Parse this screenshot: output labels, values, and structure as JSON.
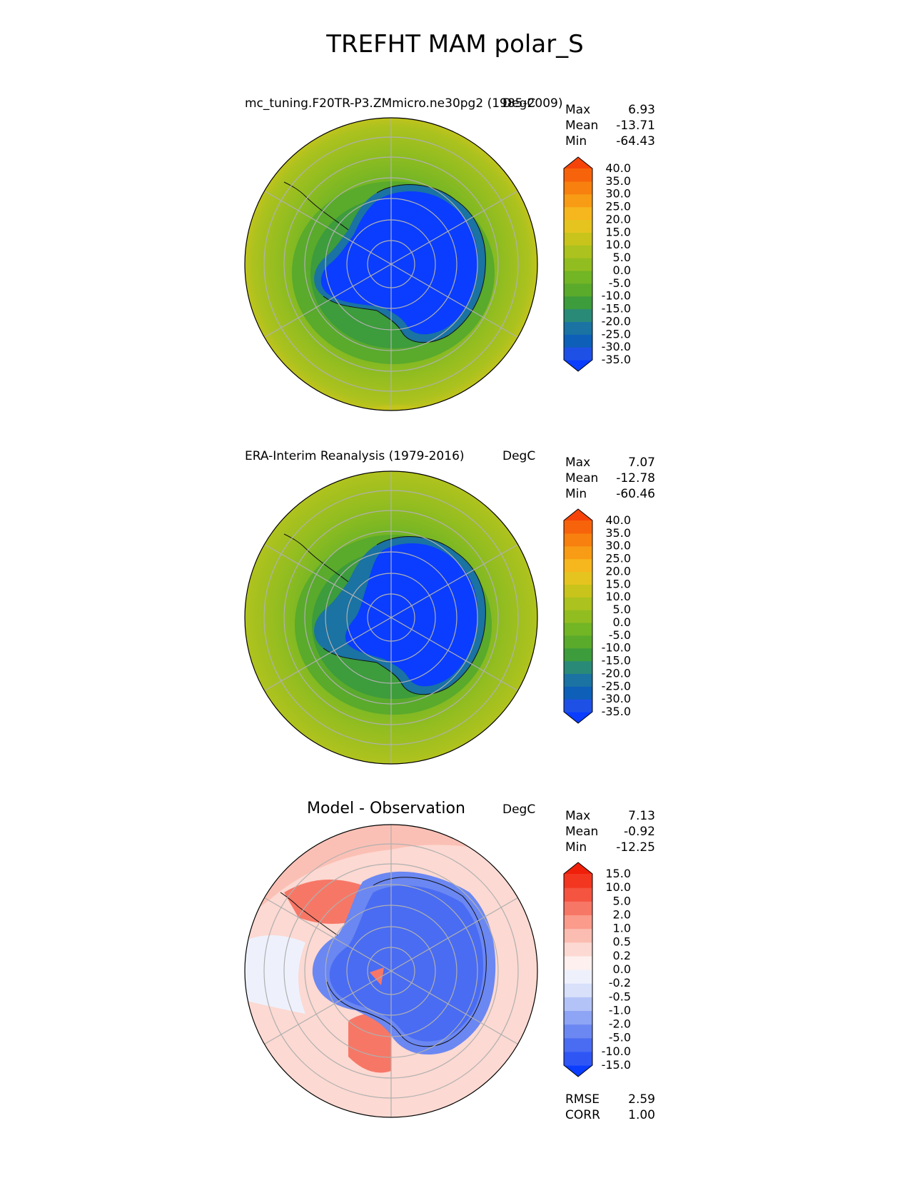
{
  "figure_title": "TREFHT MAM polar_S",
  "panels": [
    {
      "title_left": "mc_tuning.F20TR-P3.ZMmicro.ne30pg2 (1985-2009)",
      "units": "DegC",
      "stats": {
        "max_label": "Max",
        "max": "6.93",
        "mean_label": "Mean",
        "mean": "-13.71",
        "min_label": "Min",
        "min": "-64.43"
      }
    },
    {
      "title_left": "ERA-Interim Reanalysis (1979-2016)",
      "units": "DegC",
      "stats": {
        "max_label": "Max",
        "max": "7.07",
        "mean_label": "Mean",
        "mean": "-12.78",
        "min_label": "Min",
        "min": "-60.46"
      }
    },
    {
      "title_center": "Model - Observation",
      "units": "DegC",
      "stats": {
        "max_label": "Max",
        "max": "7.13",
        "mean_label": "Mean",
        "mean": "-0.92",
        "min_label": "Min",
        "min": "-12.25"
      },
      "metrics": {
        "rmse_label": "RMSE",
        "rmse": "2.59",
        "corr_label": "CORR",
        "corr": "1.00"
      }
    }
  ],
  "chart_data": [
    {
      "type": "heatmap",
      "projection": "south-polar-stereographic",
      "title": "mc_tuning.F20TR-P3.ZMmicro.ne30pg2 (1985-2009)",
      "units": "DegC",
      "colorbar": {
        "levels": [
          "-35.0",
          "-30.0",
          "-25.0",
          "-20.0",
          "-15.0",
          "-10.0",
          "-5.0",
          "0.0",
          "5.0",
          "10.0",
          "15.0",
          "20.0",
          "25.0",
          "30.0",
          "35.0",
          "40.0"
        ],
        "colors": [
          "#0a3dff",
          "#1f50e6",
          "#0e5fb8",
          "#1a73a2",
          "#2a8a78",
          "#3d9c3c",
          "#5aaa2c",
          "#72b525",
          "#92bd20",
          "#acc21e",
          "#c8c41c",
          "#e6c41f",
          "#f6b61d",
          "#f89b15",
          "#f7800f",
          "#f7630b",
          "#f5430a"
        ]
      },
      "field_levels": {
        "ocean_far": "5.0",
        "ocean_mid": "0.0",
        "ocean_near": "-5.0",
        "sea_ice": "-10.0",
        "coast": "-20.0",
        "interior": "-35.0"
      }
    },
    {
      "type": "heatmap",
      "projection": "south-polar-stereographic",
      "title": "ERA-Interim Reanalysis (1979-2016)",
      "units": "DegC",
      "colorbar": {
        "levels": [
          "-35.0",
          "-30.0",
          "-25.0",
          "-20.0",
          "-15.0",
          "-10.0",
          "-5.0",
          "0.0",
          "5.0",
          "10.0",
          "15.0",
          "20.0",
          "25.0",
          "30.0",
          "35.0",
          "40.0"
        ],
        "colors": [
          "#0a3dff",
          "#1f50e6",
          "#0e5fb8",
          "#1a73a2",
          "#2a8a78",
          "#3d9c3c",
          "#5aaa2c",
          "#72b525",
          "#92bd20",
          "#acc21e",
          "#c8c41c",
          "#e6c41f",
          "#f6b61d",
          "#f89b15",
          "#f7800f",
          "#f7630b",
          "#f5430a"
        ]
      },
      "field_levels": {
        "ocean_far": "5.0",
        "ocean_mid": "0.0",
        "ocean_near": "-5.0",
        "sea_ice": "-10.0",
        "coast": "-20.0",
        "interior": "-35.0"
      }
    },
    {
      "type": "heatmap",
      "projection": "south-polar-stereographic",
      "title": "Model - Observation",
      "units": "DegC",
      "colorbar": {
        "levels": [
          "-15.0",
          "-10.0",
          "-5.0",
          "-2.0",
          "-1.0",
          "-0.5",
          "-0.2",
          "0.0",
          "0.2",
          "0.5",
          "1.0",
          "2.0",
          "5.0",
          "10.0",
          "15.0"
        ],
        "colors": [
          "#0a3dff",
          "#2f55f5",
          "#4a6cf2",
          "#6b87f2",
          "#8ea4f4",
          "#b4c3f7",
          "#d8e0fa",
          "#eef1fc",
          "#fdf0ee",
          "#fcd9d2",
          "#fbbdb1",
          "#fa9b8c",
          "#f77766",
          "#f45440",
          "#f3361f",
          "#f01f0a"
        ]
      },
      "field_levels": {
        "ocean": "0.5",
        "ocean_warm": "2.0",
        "ross_sea": "5.0",
        "interior": "-2.0",
        "coast_cold": "-5.0"
      }
    }
  ]
}
